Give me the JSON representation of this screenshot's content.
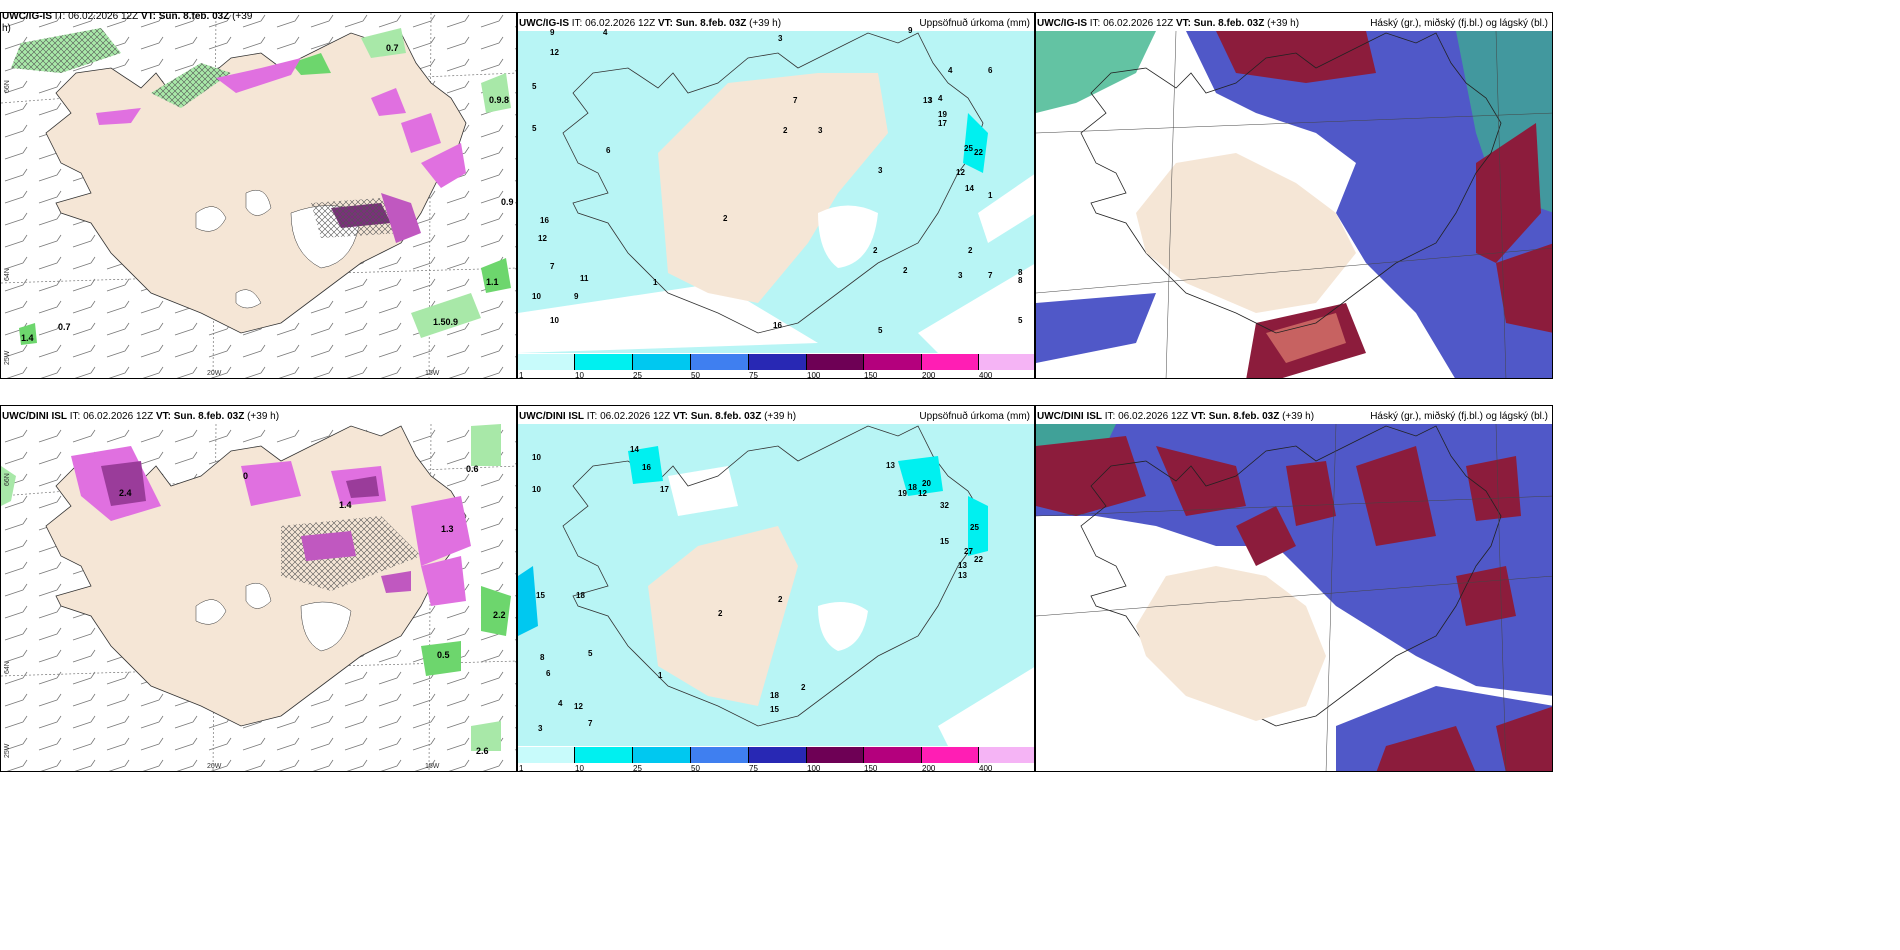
{
  "panels": [
    {
      "id": "p1",
      "title_model": "UWC/IG-IS",
      "title_rest": " IT: 06.02.2026 12Z ",
      "title_vt": "VT: Sun. 8.feb. 03Z",
      "title_hours": " (+39",
      "title_hours2": "h)",
      "right": "",
      "lon_labels": [
        "25W",
        "20W",
        "15W"
      ],
      "lat_labels": [
        "66N",
        "64N"
      ],
      "values": [
        "0.7",
        "0.9.8",
        "0.9",
        "1.1",
        "0.7",
        "1.4",
        "1.50.9"
      ]
    },
    {
      "id": "p2",
      "title_model": "UWC/IG-IS",
      "title_rest": " IT: 06.02.2026 12Z ",
      "title_vt": "VT: Sun. 8.feb. 03Z",
      "title_hours": " (+39 h)",
      "right": "Uppsöfnuð úrkoma (mm)",
      "values": [
        "9",
        "12",
        "5",
        "5",
        "6",
        "16",
        "12",
        "7",
        "11",
        "10",
        "9",
        "10",
        "4",
        "3",
        "2",
        "3",
        "7",
        "9",
        "4",
        "4",
        "3",
        "3",
        "6",
        "13",
        "19",
        "17",
        "25",
        "22",
        "14",
        "12",
        "2",
        "1",
        "8",
        "5",
        "3",
        "2",
        "2",
        "7",
        "8",
        "5",
        "2",
        "16",
        "1"
      ]
    },
    {
      "id": "p3",
      "title_model": "UWC/IG-IS",
      "title_rest": " IT: 06.02.2026 12Z ",
      "title_vt": "VT: Sun. 8.feb. 03Z",
      "title_hours": " (+39 h)",
      "right": "Háský (gr.), miðský (fj.bl.) og lágský (bl.)"
    },
    {
      "id": "p4",
      "title_model": "UWC/DINI ISL",
      "title_rest": " IT: 06.02.2026 12Z ",
      "title_vt": "VT: Sun. 8.feb. 03Z",
      "title_hours": " (+39 h)",
      "right": "",
      "lon_labels": [
        "25W",
        "20W",
        "15W"
      ],
      "lat_labels": [
        "66N",
        "64N"
      ],
      "values": [
        "0",
        "1.4",
        "2.4",
        "1.3",
        "0.6",
        "2.2",
        "0.5",
        "2.6"
      ]
    },
    {
      "id": "p5",
      "title_model": "UWC/DINI ISL",
      "title_rest": " IT: 06.02.2026 12Z ",
      "title_vt": "VT: Sun. 8.feb. 03Z",
      "title_hours": " (+39 h)",
      "right": "Uppsöfnuð úrkoma (mm)",
      "values": [
        "10",
        "10",
        "14",
        "16",
        "17",
        "15",
        "18",
        "13",
        "19",
        "18",
        "20",
        "32",
        "25",
        "27",
        "22",
        "15",
        "13",
        "13",
        "12",
        "12",
        "8",
        "7",
        "6",
        "5",
        "4",
        "3",
        "2",
        "2",
        "2",
        "15",
        "18",
        "1"
      ]
    },
    {
      "id": "p6",
      "title_model": "UWC/DINI ISL",
      "title_rest": " IT: 06.02.2026 12Z ",
      "title_vt": "VT: Sun. 8.feb. 03Z",
      "title_hours": " (+39 h)",
      "right": "Háský (gr.), miðský (fj.bl.) og lágský (bl.)"
    }
  ],
  "colorbar": {
    "ticks": [
      "1",
      "10",
      "25",
      "50",
      "75",
      "100",
      "150",
      "200",
      "400"
    ],
    "colors": [
      "#c8fbfb",
      "#00f0f0",
      "#00c8f0",
      "#3f7ff0",
      "#2828b4",
      "#6e0055",
      "#b4007d",
      "#ff1eb4",
      "#f5b4f5"
    ]
  },
  "colors": {
    "land": "#f5e6d6",
    "precip_cyan": "#b8f5f5",
    "snow_pink": "#e070e0",
    "green": "#a8e8a8",
    "cloud_blue": "#5058c8",
    "cloud_maroon": "#8c1c3c",
    "cloud_green": "#3cb48c"
  }
}
